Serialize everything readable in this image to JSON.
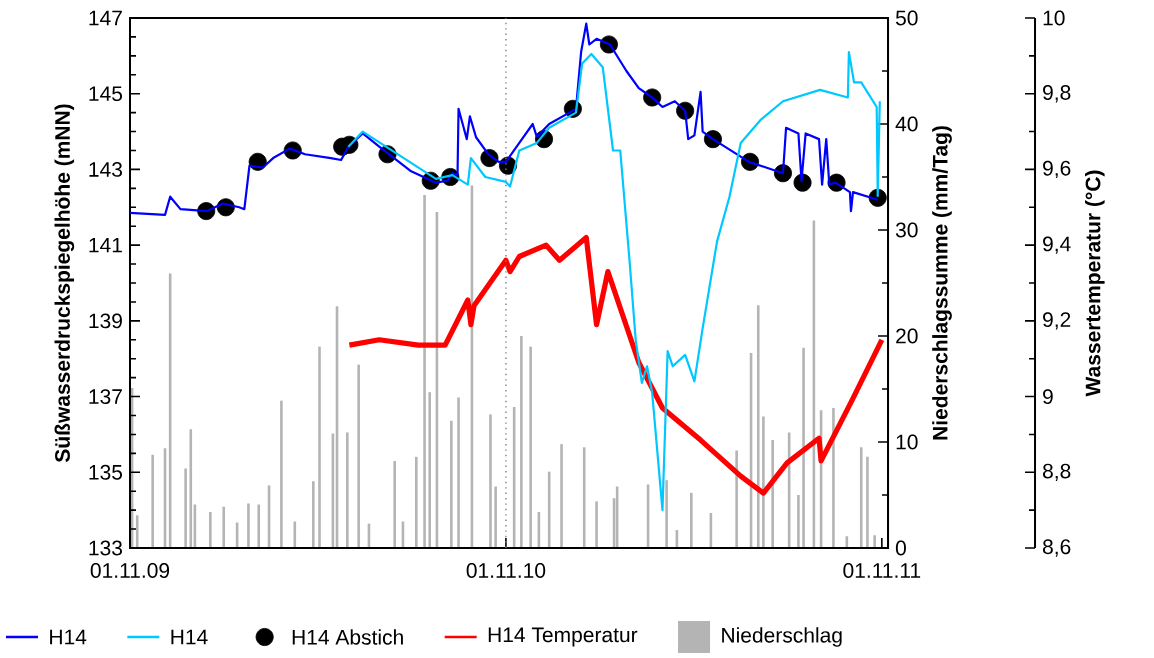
{
  "chart_data": {
    "type": "line",
    "ylabel": "Süßwasserdruckspiegelhöhe (mNN)",
    "y2label": "Niederschlagssumme (mm/Tag)",
    "y3label": "Wassertemperatur (°C)",
    "xlim": [
      "2009-11-01",
      "2011-11-07"
    ],
    "xticks": [
      {
        "value": "2009-11-01",
        "label": "01.11.09"
      },
      {
        "value": "2010-11-01",
        "label": "01.11.10"
      },
      {
        "value": "2011-11-01",
        "label": "01.11.11"
      }
    ],
    "ylim": [
      133,
      147
    ],
    "yticks": [
      133,
      135,
      137,
      139,
      141,
      143,
      145,
      147
    ],
    "y2lim": [
      0,
      50
    ],
    "y2ticks": [
      0,
      10,
      20,
      30,
      40,
      50
    ],
    "y3lim": [
      8.6,
      10
    ],
    "y3ticks": [
      {
        "value": 8.6,
        "label": "8,6"
      },
      {
        "value": 8.8,
        "label": "8,8"
      },
      9,
      {
        "value": 9.2,
        "label": "9,2"
      },
      {
        "value": 9.4,
        "label": "9,4"
      },
      {
        "value": 9.6,
        "label": "9,6"
      },
      {
        "value": 9.8,
        "label": "9,8"
      },
      10
    ],
    "legend": "bottom",
    "ref_lines": [
      {
        "axis": "x",
        "value": "2010-11-01",
        "color": "#808080",
        "line_style": "dotted"
      }
    ],
    "series": [
      {
        "name": "H14",
        "color": "#0000ff",
        "x": [
          "2009-11-01",
          "2009-12-05",
          "2009-12-10",
          "2009-12-20",
          "2010-01-15",
          "2010-01-30",
          "2010-02-15",
          "2010-02-20",
          "2010-02-25",
          "2010-03-10",
          "2010-03-20",
          "2010-04-05",
          "2010-04-20",
          "2010-05-15",
          "2010-05-25",
          "2010-06-01",
          "2010-06-15",
          "2010-07-01",
          "2010-08-01",
          "2010-08-25",
          "2010-09-05",
          "2010-09-10",
          "2010-09-15",
          "2010-09-16",
          "2010-09-20",
          "2010-09-24",
          "2010-09-27",
          "2010-10-03",
          "2010-10-15",
          "2010-10-25",
          "2010-11-01",
          "2010-11-14",
          "2010-11-27",
          "2010-12-01",
          "2010-12-13",
          "2011-01-08",
          "2011-01-13",
          "2011-01-18",
          "2011-01-21",
          "2011-01-28",
          "2011-02-10",
          "2011-02-26",
          "2011-03-10",
          "2011-03-23",
          "2011-04-02",
          "2011-04-14",
          "2011-04-24",
          "2011-04-27",
          "2011-05-03",
          "2011-05-09",
          "2011-05-11",
          "2011-05-21",
          "2011-06-25",
          "2011-07-28",
          "2011-07-31",
          "2011-08-12",
          "2011-08-15",
          "2011-08-19",
          "2011-09-01",
          "2011-09-04",
          "2011-09-08",
          "2011-09-11",
          "2011-09-17",
          "2011-10-01",
          "2011-10-02",
          "2011-10-04",
          "2011-10-28"
        ],
        "values": [
          141.85,
          141.8,
          142.28,
          141.95,
          141.9,
          142.1,
          142.0,
          141.95,
          143.1,
          143.05,
          143.3,
          143.55,
          143.4,
          143.3,
          143.25,
          143.6,
          143.95,
          143.6,
          142.95,
          142.65,
          142.7,
          142.9,
          142.85,
          144.6,
          144.2,
          143.8,
          144.4,
          143.85,
          143.4,
          143.2,
          143.2,
          143.7,
          144.2,
          143.86,
          144.2,
          144.6,
          146.1,
          146.85,
          146.3,
          146.45,
          146.3,
          145.6,
          145.15,
          144.9,
          144.65,
          144.8,
          144.55,
          143.8,
          143.9,
          145.05,
          144.0,
          143.8,
          143.2,
          142.9,
          144.1,
          143.95,
          142.7,
          143.95,
          143.8,
          142.6,
          143.8,
          142.6,
          142.65,
          142.4,
          141.9,
          142.4,
          142.2
        ]
      },
      {
        "name": "H14",
        "color": "#00c8ff",
        "x": [
          "2010-06-01",
          "2010-06-15",
          "2010-08-25",
          "2010-09-10",
          "2010-09-25",
          "2010-09-28",
          "2010-10-12",
          "2010-11-01",
          "2010-11-05",
          "2010-11-14",
          "2010-12-01",
          "2010-12-13",
          "2011-01-08",
          "2011-01-14",
          "2011-01-23",
          "2011-02-03",
          "2011-02-13",
          "2011-02-20",
          "2011-03-01",
          "2011-03-07",
          "2011-03-13",
          "2011-03-18",
          "2011-03-23",
          "2011-04-02",
          "2011-04-07",
          "2011-04-12",
          "2011-04-24",
          "2011-05-03",
          "2011-05-11",
          "2011-05-25",
          "2011-06-06",
          "2011-06-17",
          "2011-07-06",
          "2011-07-28",
          "2011-09-02",
          "2011-09-29",
          "2011-09-30",
          "2011-10-05",
          "2011-10-12",
          "2011-10-27",
          "2011-10-28",
          "2011-10-30"
        ],
        "values": [
          143.6,
          144.0,
          142.75,
          142.85,
          142.6,
          143.3,
          142.8,
          142.67,
          142.55,
          143.5,
          143.7,
          144.1,
          144.5,
          145.8,
          146.05,
          145.7,
          143.5,
          143.5,
          140.6,
          138.5,
          137.36,
          137.8,
          137.1,
          134.0,
          138.2,
          137.8,
          138.1,
          137.4,
          138.8,
          141.1,
          142.27,
          143.7,
          144.3,
          144.8,
          145.1,
          144.9,
          146.1,
          145.3,
          145.3,
          144.65,
          142.3,
          144.8
        ]
      },
      {
        "name": "H14 Abstich",
        "type": "scatter",
        "color": "#000000",
        "marker": "circle",
        "x": [
          "2010-01-14",
          "2010-02-02",
          "2010-03-05",
          "2010-04-08",
          "2010-05-26",
          "2010-06-02",
          "2010-07-09",
          "2010-08-20",
          "2010-09-08",
          "2010-10-16",
          "2010-11-03",
          "2010-12-08",
          "2011-01-05",
          "2011-02-09",
          "2011-03-23",
          "2011-04-24",
          "2011-05-21",
          "2011-06-26",
          "2011-07-28",
          "2011-08-16",
          "2011-09-18",
          "2011-10-28"
        ],
        "values": [
          141.9,
          142.0,
          143.2,
          143.5,
          143.6,
          143.65,
          143.4,
          142.7,
          142.8,
          143.3,
          143.1,
          143.8,
          144.6,
          146.3,
          144.9,
          144.55,
          143.8,
          143.2,
          142.9,
          142.65,
          142.65,
          142.25
        ]
      },
      {
        "name": "H14 Temperatur",
        "type": "line",
        "axis": "y3",
        "color": "#ff0000",
        "x": [
          "2010-06-02",
          "2010-07-01",
          "2010-08-08",
          "2010-09-03",
          "2010-09-25",
          "2010-09-28",
          "2010-10-01",
          "2010-11-01",
          "2010-11-05",
          "2010-11-14",
          "2010-12-10",
          "2010-12-23",
          "2011-01-18",
          "2011-01-28",
          "2011-02-08",
          "2011-03-10",
          "2011-04-02",
          "2011-05-09",
          "2011-06-17",
          "2011-07-09",
          "2011-08-01",
          "2011-09-01",
          "2011-09-03",
          "2011-10-03",
          "2011-11-01"
        ],
        "values": [
          9.136,
          9.15,
          9.136,
          9.136,
          9.255,
          9.19,
          9.24,
          9.36,
          9.33,
          9.37,
          9.4,
          9.36,
          9.42,
          9.19,
          9.33,
          9.09,
          8.97,
          8.885,
          8.79,
          8.745,
          8.825,
          8.89,
          8.83,
          8.99,
          9.15
        ]
      },
      {
        "name": "Niederschlag",
        "type": "bar",
        "axis": "y2",
        "color": "#b4b4b4",
        "x": [
          "2009-11-03",
          "2009-11-08",
          "2009-11-23",
          "2009-12-05",
          "2009-12-10",
          "2009-12-25",
          "2009-12-30",
          "2010-01-03",
          "2010-01-18",
          "2010-01-31",
          "2010-02-13",
          "2010-02-24",
          "2010-03-06",
          "2010-03-16",
          "2010-03-28",
          "2010-04-10",
          "2010-04-28",
          "2010-05-04",
          "2010-05-17",
          "2010-05-21",
          "2010-05-31",
          "2010-06-11",
          "2010-06-21",
          "2010-07-16",
          "2010-07-24",
          "2010-08-06",
          "2010-08-14",
          "2010-08-19",
          "2010-08-26",
          "2010-09-09",
          "2010-09-16",
          "2010-09-29",
          "2010-10-17",
          "2010-10-22",
          "2010-11-09",
          "2010-11-16",
          "2010-11-25",
          "2010-12-03",
          "2010-12-13",
          "2010-12-25",
          "2011-01-16",
          "2011-01-28",
          "2011-02-14",
          "2011-02-17",
          "2011-03-19",
          "2011-04-06",
          "2011-04-16",
          "2011-04-30",
          "2011-05-19",
          "2011-06-13",
          "2011-06-27",
          "2011-07-04",
          "2011-07-09",
          "2011-07-18",
          "2011-08-03",
          "2011-08-12",
          "2011-08-17",
          "2011-08-27",
          "2011-09-03",
          "2011-09-15",
          "2011-09-28",
          "2011-10-12",
          "2011-10-18",
          "2011-10-25"
        ],
        "values": [
          15.1,
          3.1,
          8.8,
          9.4,
          25.9,
          7.5,
          11.2,
          4.1,
          3.4,
          3.9,
          2.4,
          4.2,
          4.1,
          5.9,
          13.9,
          2.5,
          6.3,
          19.0,
          10.8,
          22.8,
          10.9,
          17.3,
          2.3,
          8.2,
          2.5,
          8.6,
          33.3,
          14.7,
          31.7,
          12.0,
          14.2,
          34.2,
          12.6,
          5.8,
          13.3,
          20.0,
          19.0,
          3.4,
          7.2,
          9.8,
          9.5,
          4.4,
          4.7,
          5.8,
          6.0,
          6.4,
          1.7,
          5.2,
          3.3,
          9.2,
          18.4,
          22.9,
          12.4,
          10.2,
          10.9,
          5.0,
          18.9,
          30.9,
          13.0,
          13.2,
          1.1,
          9.5,
          8.6,
          1.2
        ]
      }
    ]
  }
}
